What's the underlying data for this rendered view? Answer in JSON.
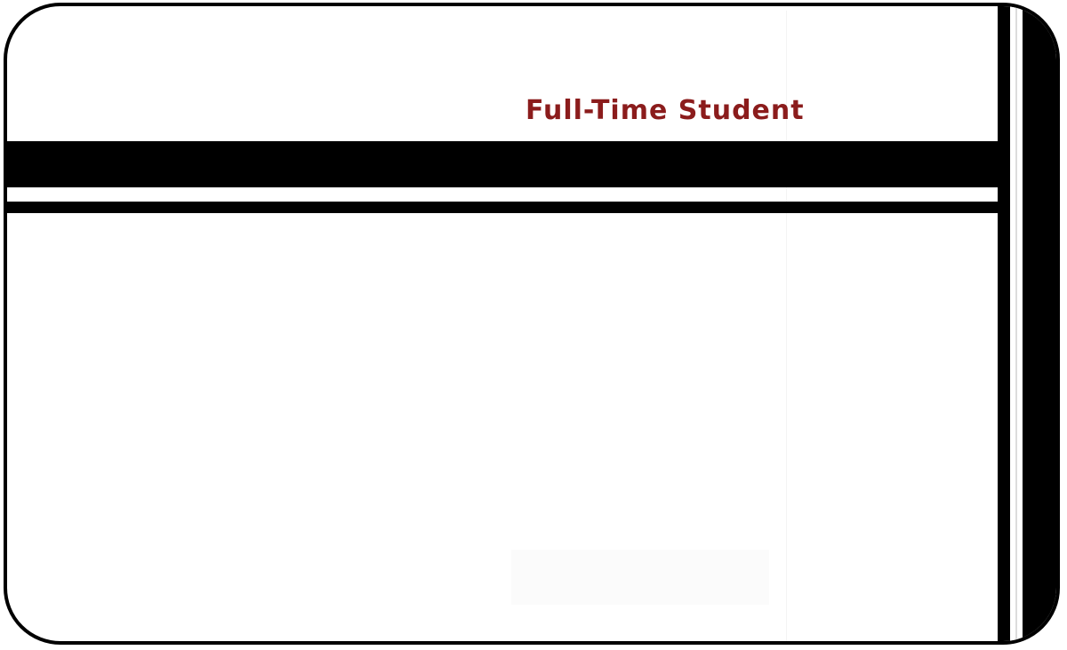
{
  "card": {
    "status_label": "Full-Time Student"
  },
  "colors": {
    "label": "#8b1c1c",
    "stripe": "#000000",
    "background": "#ffffff"
  }
}
